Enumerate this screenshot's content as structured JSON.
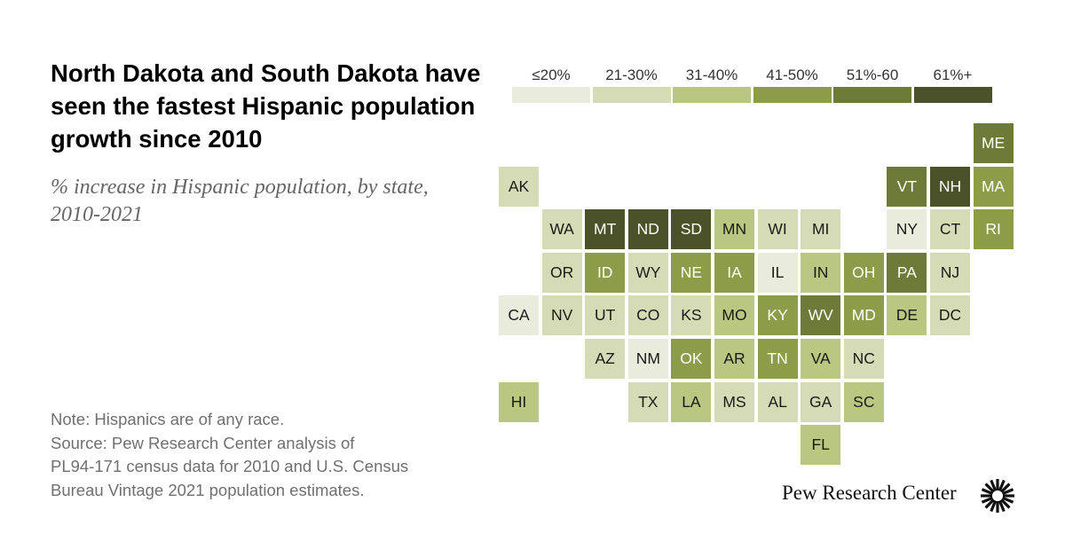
{
  "title": "North Dakota and South Dakota have seen the fastest Hispanic population growth since 2010",
  "subtitle": "% increase in Hispanic population, by state, 2010-2021",
  "note_lines": [
    "Note: Hispanics are of any race.",
    "Source: Pew Research Center analysis of",
    "PL94-171 census data for 2010 and U.S. Census",
    "Bureau Vintage 2021 population estimates."
  ],
  "brand": "Pew Research Center",
  "brand_icon": "pew-sunburst-icon",
  "legend": [
    {
      "label": "≤20%",
      "color": "#e9ecda"
    },
    {
      "label": "21-30%",
      "color": "#d5dcb5"
    },
    {
      "label": "31-40%",
      "color": "#b9c781"
    },
    {
      "label": "41-50%",
      "color": "#8c9c48"
    },
    {
      "label": "51%-60",
      "color": "#6e7a38"
    },
    {
      "label": "61%+",
      "color": "#4b5128"
    }
  ],
  "chart_data": {
    "type": "heatmap",
    "title": "North Dakota and South Dakota have seen the fastest Hispanic population growth since 2010",
    "subtitle": "% increase in Hispanic population, by state, 2010-2021",
    "bins": [
      "≤20%",
      "21-30%",
      "31-40%",
      "41-50%",
      "51%-60",
      "61%+"
    ],
    "grid_columns": 12,
    "grid_rows": 8,
    "states": [
      {
        "state": "ME",
        "row": 0,
        "col": 11,
        "bin": 4
      },
      {
        "state": "AK",
        "row": 1,
        "col": 0,
        "bin": 1
      },
      {
        "state": "VT",
        "row": 1,
        "col": 9,
        "bin": 4
      },
      {
        "state": "NH",
        "row": 1,
        "col": 10,
        "bin": 5
      },
      {
        "state": "MA",
        "row": 1,
        "col": 11,
        "bin": 3
      },
      {
        "state": "WA",
        "row": 2,
        "col": 1,
        "bin": 1
      },
      {
        "state": "MT",
        "row": 2,
        "col": 2,
        "bin": 5
      },
      {
        "state": "ND",
        "row": 2,
        "col": 3,
        "bin": 5
      },
      {
        "state": "SD",
        "row": 2,
        "col": 4,
        "bin": 5
      },
      {
        "state": "MN",
        "row": 2,
        "col": 5,
        "bin": 2
      },
      {
        "state": "WI",
        "row": 2,
        "col": 6,
        "bin": 1
      },
      {
        "state": "MI",
        "row": 2,
        "col": 7,
        "bin": 1
      },
      {
        "state": "NY",
        "row": 2,
        "col": 9,
        "bin": 0
      },
      {
        "state": "CT",
        "row": 2,
        "col": 10,
        "bin": 1
      },
      {
        "state": "RI",
        "row": 2,
        "col": 11,
        "bin": 3
      },
      {
        "state": "OR",
        "row": 3,
        "col": 1,
        "bin": 1
      },
      {
        "state": "ID",
        "row": 3,
        "col": 2,
        "bin": 3
      },
      {
        "state": "WY",
        "row": 3,
        "col": 3,
        "bin": 1
      },
      {
        "state": "NE",
        "row": 3,
        "col": 4,
        "bin": 3
      },
      {
        "state": "IA",
        "row": 3,
        "col": 5,
        "bin": 3
      },
      {
        "state": "IL",
        "row": 3,
        "col": 6,
        "bin": 0
      },
      {
        "state": "IN",
        "row": 3,
        "col": 7,
        "bin": 2
      },
      {
        "state": "OH",
        "row": 3,
        "col": 8,
        "bin": 3
      },
      {
        "state": "PA",
        "row": 3,
        "col": 9,
        "bin": 4
      },
      {
        "state": "NJ",
        "row": 3,
        "col": 10,
        "bin": 1
      },
      {
        "state": "CA",
        "row": 4,
        "col": 0,
        "bin": 0
      },
      {
        "state": "NV",
        "row": 4,
        "col": 1,
        "bin": 1
      },
      {
        "state": "UT",
        "row": 4,
        "col": 2,
        "bin": 1
      },
      {
        "state": "CO",
        "row": 4,
        "col": 3,
        "bin": 1
      },
      {
        "state": "KS",
        "row": 4,
        "col": 4,
        "bin": 1
      },
      {
        "state": "MO",
        "row": 4,
        "col": 5,
        "bin": 2
      },
      {
        "state": "KY",
        "row": 4,
        "col": 6,
        "bin": 3
      },
      {
        "state": "WV",
        "row": 4,
        "col": 7,
        "bin": 4
      },
      {
        "state": "MD",
        "row": 4,
        "col": 8,
        "bin": 3
      },
      {
        "state": "DE",
        "row": 4,
        "col": 9,
        "bin": 2
      },
      {
        "state": "DC",
        "row": 4,
        "col": 10,
        "bin": 1
      },
      {
        "state": "AZ",
        "row": 5,
        "col": 2,
        "bin": 1
      },
      {
        "state": "NM",
        "row": 5,
        "col": 3,
        "bin": 0
      },
      {
        "state": "OK",
        "row": 5,
        "col": 4,
        "bin": 3
      },
      {
        "state": "AR",
        "row": 5,
        "col": 5,
        "bin": 2
      },
      {
        "state": "TN",
        "row": 5,
        "col": 6,
        "bin": 3
      },
      {
        "state": "VA",
        "row": 5,
        "col": 7,
        "bin": 2
      },
      {
        "state": "NC",
        "row": 5,
        "col": 8,
        "bin": 1
      },
      {
        "state": "HI",
        "row": 6,
        "col": 0,
        "bin": 2
      },
      {
        "state": "TX",
        "row": 6,
        "col": 3,
        "bin": 1
      },
      {
        "state": "LA",
        "row": 6,
        "col": 4,
        "bin": 2
      },
      {
        "state": "MS",
        "row": 6,
        "col": 5,
        "bin": 1
      },
      {
        "state": "AL",
        "row": 6,
        "col": 6,
        "bin": 1
      },
      {
        "state": "GA",
        "row": 6,
        "col": 7,
        "bin": 1
      },
      {
        "state": "SC",
        "row": 6,
        "col": 8,
        "bin": 2
      },
      {
        "state": "FL",
        "row": 7,
        "col": 7,
        "bin": 2
      }
    ]
  }
}
